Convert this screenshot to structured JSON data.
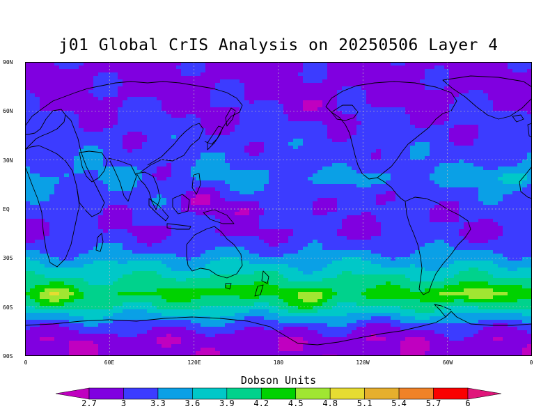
{
  "title": "j01 Global CrIS Analysis on 20250506 Layer 4",
  "lat_labels": [
    "90N",
    "60N",
    "30N",
    "EQ",
    "30S",
    "60S",
    "90S"
  ],
  "lon_labels": [
    "0",
    "60E",
    "120E",
    "180",
    "120W",
    "60W",
    "0"
  ],
  "colorbar": {
    "title": "Dobson Units",
    "labels": [
      "2.7",
      "3",
      "3.3",
      "3.6",
      "3.9",
      "4.2",
      "4.5",
      "4.8",
      "5.1",
      "5.4",
      "5.7",
      "6"
    ],
    "colors": [
      "#c000c0",
      "#8000e0",
      "#3c3cff",
      "#0aa0e6",
      "#00c8c8",
      "#00d28c",
      "#00d200",
      "#a0e632",
      "#e6dc32",
      "#e6af2d",
      "#f08228",
      "#fa0000",
      "#e0157a"
    ]
  },
  "units": "Dobson Units",
  "chart_data": {
    "type": "heatmap",
    "title": "j01 Global CrIS Analysis on 20250506 Layer 4",
    "variable": "Dobson Units",
    "levels": [
      2.7,
      3.0,
      3.3,
      3.6,
      3.9,
      4.2,
      4.5,
      4.8,
      5.1,
      5.4,
      5.7,
      6.0
    ],
    "x_range_deg_east": [
      0,
      360
    ],
    "y_range_deg_north": [
      -90,
      90
    ],
    "zonal_profile": [
      {
        "lat": 90,
        "value": 2.9
      },
      {
        "lat": 75,
        "value": 2.9
      },
      {
        "lat": 60,
        "value": 3.0
      },
      {
        "lat": 45,
        "value": 3.1
      },
      {
        "lat": 30,
        "value": 3.2
      },
      {
        "lat": 20,
        "value": 3.35
      },
      {
        "lat": 10,
        "value": 3.2
      },
      {
        "lat": 0,
        "value": 3.1
      },
      {
        "lat": -15,
        "value": 3.0
      },
      {
        "lat": -25,
        "value": 3.25
      },
      {
        "lat": -35,
        "value": 3.65
      },
      {
        "lat": -45,
        "value": 4.0
      },
      {
        "lat": -52,
        "value": 4.25
      },
      {
        "lat": -60,
        "value": 3.9
      },
      {
        "lat": -66,
        "value": 3.5
      },
      {
        "lat": -72,
        "value": 3.1
      },
      {
        "lat": -80,
        "value": 2.8
      },
      {
        "lat": -90,
        "value": 2.8
      }
    ],
    "features": [
      {
        "lon": 20,
        "lat": -53,
        "value": 4.6
      },
      {
        "lon": 142,
        "lat": -48,
        "value": 4.4
      },
      {
        "lon": 205,
        "lat": -55,
        "value": 4.5
      },
      {
        "lon": 295,
        "lat": -52,
        "value": 4.5
      },
      {
        "lon": 320,
        "lat": -52,
        "value": 4.8
      },
      {
        "lon": 350,
        "lat": 18,
        "value": 3.7
      },
      {
        "lon": 335,
        "lat": 22,
        "value": 3.5
      },
      {
        "lon": 125,
        "lat": 5,
        "value": 2.75
      },
      {
        "lon": 155,
        "lat": 0,
        "value": 2.8
      },
      {
        "lon": 250,
        "lat": 8,
        "value": 2.85
      },
      {
        "lon": 210,
        "lat": 30,
        "value": 3.0
      },
      {
        "lon": 95,
        "lat": 20,
        "value": 3.1
      },
      {
        "lon": 210,
        "lat": 63,
        "value": 2.8
      },
      {
        "lon": 30,
        "lat": -80,
        "value": 2.75
      },
      {
        "lon": 250,
        "lat": -78,
        "value": 2.75
      }
    ]
  }
}
